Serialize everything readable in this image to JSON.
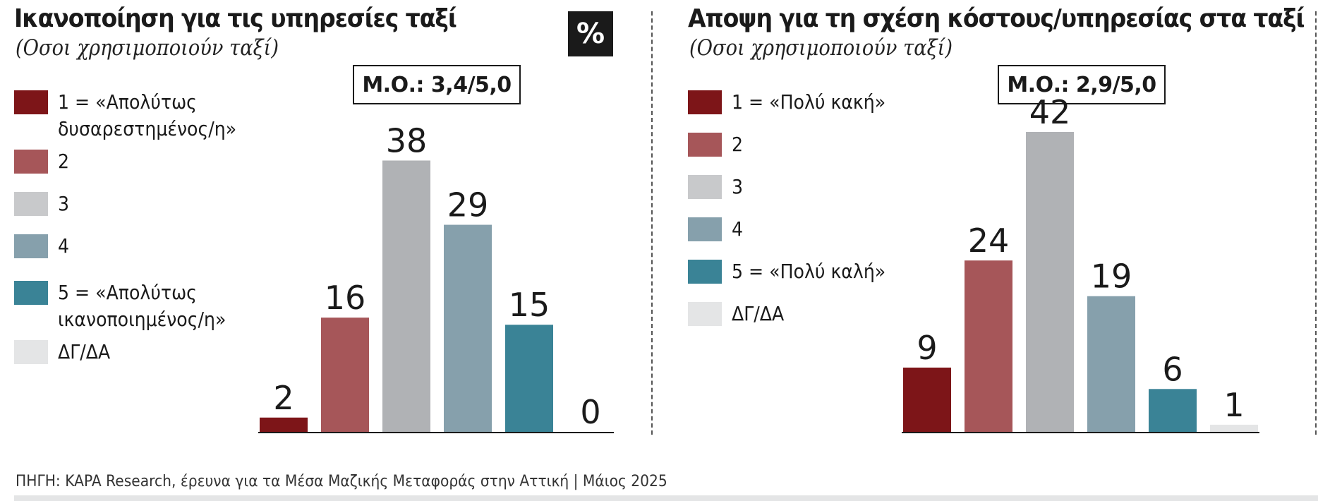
{
  "left": {
    "title": "Ικανοποίηση για τις υπηρεσίες ταξί",
    "subtitle": "(Οσοι χρησιμοποιούν ταξί)",
    "mean": "Μ.Ο.: 3,4/5,0",
    "badge": "%",
    "legend": [
      {
        "label_lines": [
          "1 = «Απολύτως",
          "δυσαρεστημένος/η»"
        ],
        "color": "#7d1518"
      },
      {
        "label_lines": [
          "2"
        ],
        "color": "#a65659"
      },
      {
        "label_lines": [
          "3"
        ],
        "color": "#c8c9cb"
      },
      {
        "label_lines": [
          "4"
        ],
        "color": "#86a0ac"
      },
      {
        "label_lines": [
          "5 = «Απολύτως",
          "ικανοποιημένος/η»"
        ],
        "color": "#3a8396"
      },
      {
        "label_lines": [
          "ΔΓ/ΔΑ"
        ],
        "color": "#e4e5e6"
      }
    ]
  },
  "right": {
    "title": "Αποψη για τη σχέση κόστους/υπηρεσίας στα ταξί",
    "subtitle": "(Οσοι χρησιμοποιούν ταξί)",
    "mean": "Μ.Ο.: 2,9/5,0",
    "legend": [
      {
        "label_lines": [
          "1 = «Πολύ κακή»"
        ],
        "color": "#7d1518"
      },
      {
        "label_lines": [
          "2"
        ],
        "color": "#a65659"
      },
      {
        "label_lines": [
          "3"
        ],
        "color": "#c8c9cb"
      },
      {
        "label_lines": [
          "4"
        ],
        "color": "#86a0ac"
      },
      {
        "label_lines": [
          "5 = «Πολύ καλή»"
        ],
        "color": "#3a8396"
      },
      {
        "label_lines": [
          "ΔΓ/ΔΑ"
        ],
        "color": "#e4e5e6"
      }
    ]
  },
  "chart_data": [
    {
      "type": "bar",
      "title": "Ικανοποίηση για τις υπηρεσίες ταξί",
      "unit": "%",
      "categories": [
        "1",
        "2",
        "3",
        "4",
        "5",
        "ΔΓ/ΔΑ"
      ],
      "values": [
        2,
        16,
        38,
        29,
        15,
        0
      ],
      "colors": [
        "#7d1518",
        "#a65659",
        "#b0b2b5",
        "#86a0ac",
        "#3a8396",
        "#e4e5e6"
      ],
      "ylim": [
        0,
        42
      ]
    },
    {
      "type": "bar",
      "title": "Αποψη για τη σχέση κόστους/υπηρεσίας στα ταξί",
      "unit": "%",
      "categories": [
        "1",
        "2",
        "3",
        "4",
        "5",
        "ΔΓ/ΔΑ"
      ],
      "values": [
        9,
        24,
        42,
        19,
        6,
        1
      ],
      "colors": [
        "#7d1518",
        "#a65659",
        "#b0b2b5",
        "#86a0ac",
        "#3a8396",
        "#e4e5e6"
      ],
      "ylim": [
        0,
        42
      ]
    }
  ],
  "source": "ΠΗΓΗ: KAPA Research, έρευνα για τα Μέσα Μαζικής Μεταφοράς στην Αττική | Μάιος 2025"
}
